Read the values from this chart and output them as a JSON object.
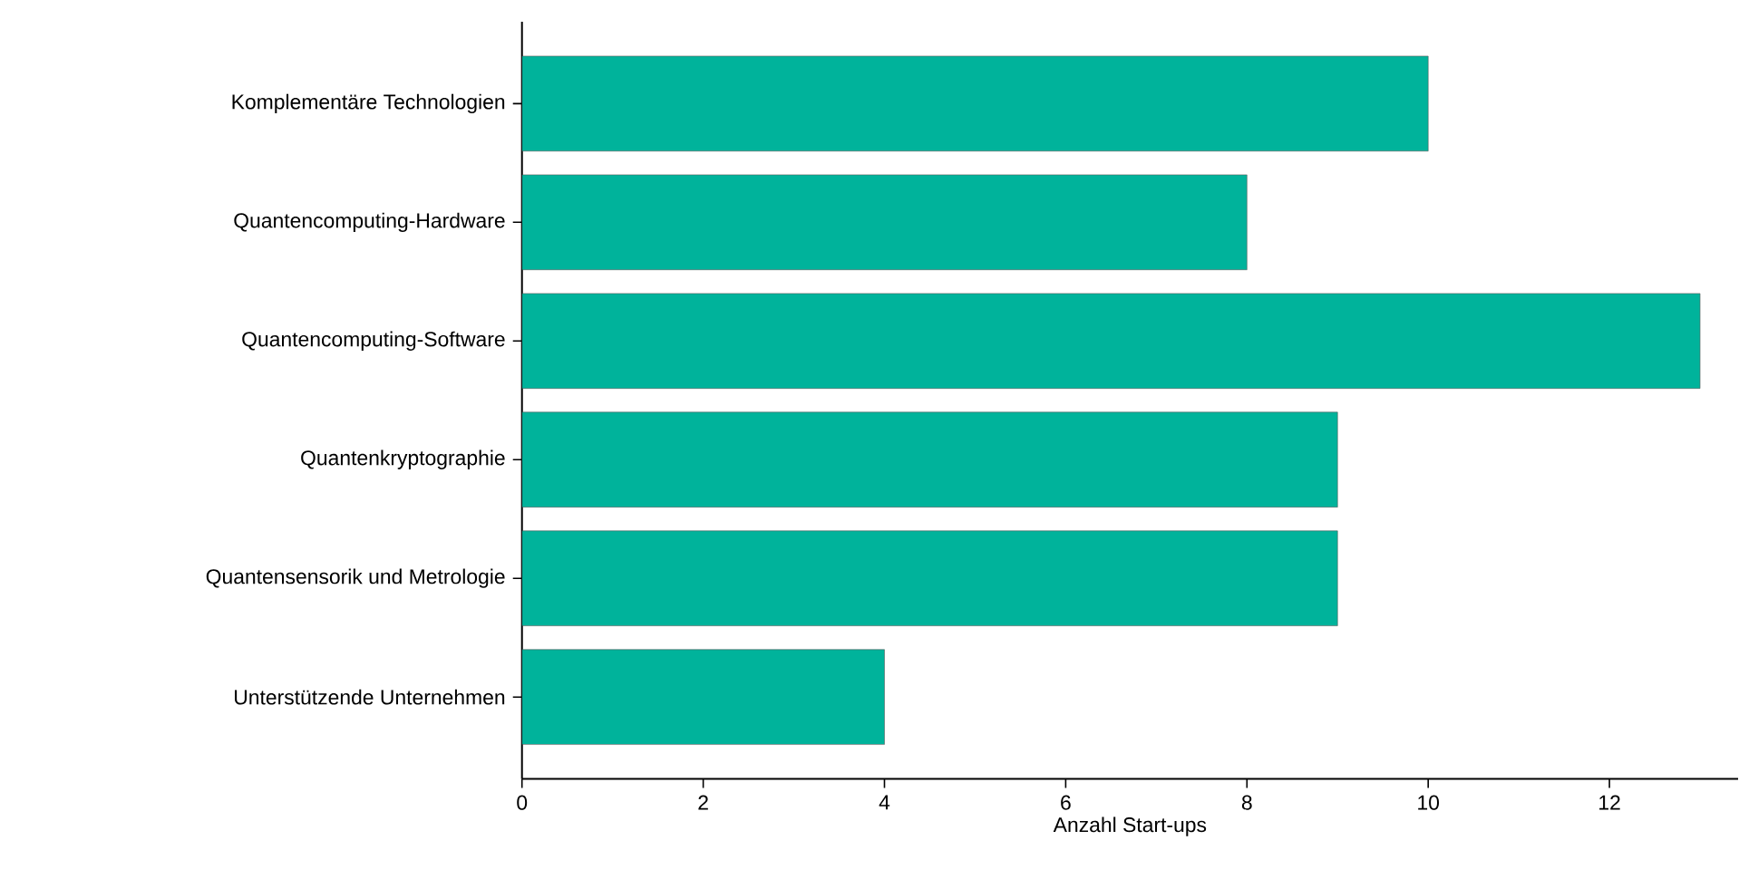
{
  "chart_data": {
    "type": "bar",
    "orientation": "horizontal",
    "xlabel": "Anzahl Start-ups",
    "categories": [
      "Komplementäre Technologien",
      "Quantencomputing-Hardware",
      "Quantencomputing-Software",
      "Quantenkryptographie",
      "Quantensensorik und Metrologie",
      "Unterstützende Unternehmen"
    ],
    "values": [
      10,
      8,
      13,
      9,
      9,
      4
    ],
    "color": "#00b39b",
    "xlim": [
      0,
      13.42
    ],
    "xticks": [
      0,
      2,
      4,
      6,
      8,
      10,
      12
    ],
    "grid": false
  }
}
